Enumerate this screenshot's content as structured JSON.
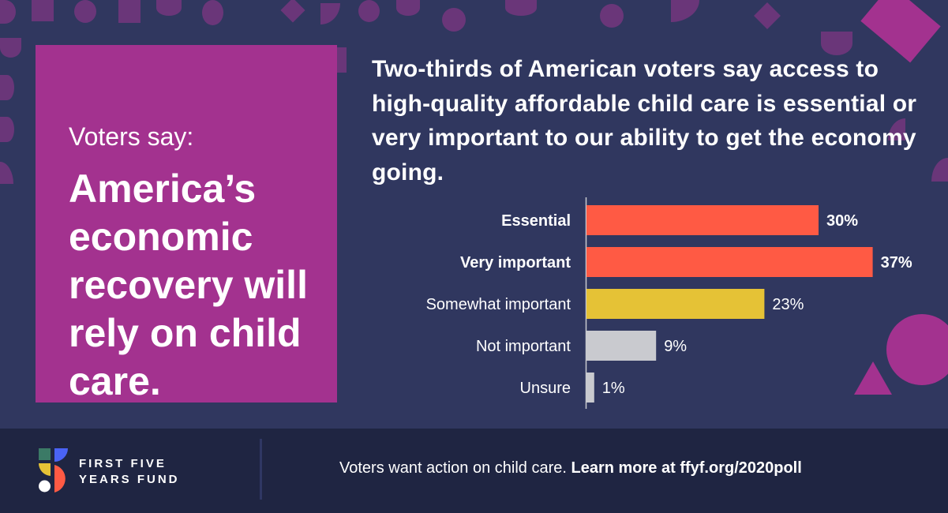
{
  "card": {
    "kicker": "Voters say:",
    "headline": "America’s economic recovery will rely on child care."
  },
  "question": {
    "part1": "Two-thirds of American voters say access to high-quality affordable child care is ",
    "emphasis": "essential or very important",
    "part2": " to our ability to get the economy going."
  },
  "chart_data": {
    "type": "bar",
    "orientation": "horizontal",
    "categories": [
      "Essential",
      "Very important",
      "Somewhat important",
      "Not important",
      "Unsure"
    ],
    "values": [
      30,
      37,
      23,
      9,
      1
    ],
    "labels": [
      "30%",
      "37%",
      "23%",
      "9%",
      "1%"
    ],
    "bold": [
      true,
      true,
      false,
      false,
      false
    ],
    "colors": [
      "#ff5a44",
      "#ff5a44",
      "#e5c236",
      "#c9cacf",
      "#c9cacf"
    ],
    "unit": "%",
    "xlim": [
      0,
      40
    ],
    "grid": false
  },
  "footer": {
    "logo_line1": "FIRST FIVE",
    "logo_line2": "YEARS FUND",
    "cta_text": "Voters want action on child care. ",
    "cta_link": "Learn more at ffyf.org/2020poll"
  },
  "colors": {
    "background": "#30375f",
    "card": "#a3328f",
    "footer": "#1f2542",
    "pattern": "#6a3679"
  }
}
